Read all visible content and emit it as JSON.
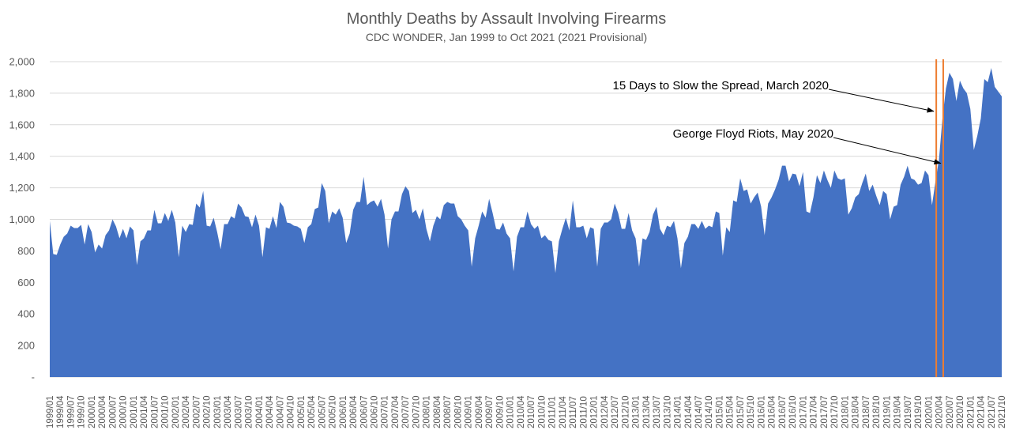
{
  "chart_data": {
    "type": "area",
    "title": "Monthly Deaths by Assault Involving Firearms",
    "subtitle": "CDC WONDER, Jan 1999 to Oct 2021 (2021 Provisional)",
    "ylim": [
      0,
      2000
    ],
    "yticks": [
      0,
      200,
      400,
      600,
      800,
      1000,
      1200,
      1400,
      1600,
      1800,
      2000
    ],
    "ytick_labels": [
      "-",
      "200",
      "400",
      "600",
      "800",
      "1,000",
      "1,200",
      "1,400",
      "1,600",
      "1,800",
      "2,000"
    ],
    "grid": true,
    "legend": "none",
    "x_start": "1999/01",
    "x_end": "2021/10",
    "x_label_step_months": 3,
    "colors": {
      "area": "#4472C4",
      "vline": "#ED7D31",
      "grid": "#D9D9D9",
      "text": "#595959"
    },
    "series": [
      {
        "values": [
          990,
          780,
          775,
          840,
          890,
          910,
          960,
          945,
          945,
          965,
          840,
          970,
          920,
          790,
          840,
          815,
          900,
          930,
          1000,
          955,
          880,
          940,
          880,
          955,
          930,
          710,
          860,
          880,
          930,
          930,
          1060,
          975,
          975,
          1040,
          990,
          1060,
          980,
          760,
          960,
          920,
          970,
          965,
          1100,
          1075,
          1180,
          960,
          955,
          1010,
          920,
          810,
          970,
          970,
          1020,
          1005,
          1100,
          1075,
          1020,
          1015,
          950,
          1030,
          960,
          760,
          950,
          940,
          1020,
          945,
          1110,
          1080,
          980,
          975,
          960,
          955,
          940,
          850,
          950,
          970,
          1065,
          1075,
          1230,
          1180,
          975,
          1050,
          1030,
          1070,
          1010,
          850,
          910,
          1060,
          1110,
          1110,
          1270,
          1090,
          1110,
          1120,
          1080,
          1130,
          1030,
          815,
          1000,
          1050,
          1050,
          1160,
          1210,
          1180,
          1040,
          1060,
          1000,
          1070,
          940,
          860,
          960,
          1020,
          1000,
          1090,
          1110,
          1100,
          1100,
          1020,
          1000,
          960,
          930,
          700,
          880,
          960,
          1050,
          1010,
          1130,
          1040,
          940,
          935,
          980,
          910,
          880,
          670,
          890,
          950,
          950,
          1050,
          970,
          940,
          960,
          880,
          900,
          870,
          860,
          660,
          860,
          940,
          1010,
          930,
          1120,
          950,
          950,
          960,
          880,
          950,
          940,
          700,
          940,
          980,
          980,
          1000,
          1100,
          1040,
          940,
          940,
          1040,
          930,
          880,
          700,
          880,
          870,
          920,
          1030,
          1080,
          940,
          900,
          960,
          950,
          990,
          880,
          690,
          850,
          890,
          970,
          970,
          940,
          990,
          940,
          960,
          950,
          1050,
          1040,
          770,
          950,
          920,
          1120,
          1110,
          1260,
          1180,
          1190,
          1100,
          1140,
          1170,
          1080,
          900,
          1100,
          1140,
          1190,
          1250,
          1340,
          1340,
          1240,
          1290,
          1285,
          1210,
          1300,
          1050,
          1040,
          1140,
          1280,
          1230,
          1310,
          1250,
          1200,
          1310,
          1260,
          1250,
          1260,
          1030,
          1070,
          1140,
          1160,
          1230,
          1290,
          1180,
          1220,
          1150,
          1090,
          1180,
          1160,
          1000,
          1080,
          1090,
          1220,
          1270,
          1340,
          1260,
          1250,
          1220,
          1230,
          1310,
          1280,
          1090,
          1240,
          1380,
          1640,
          1830,
          1930,
          1890,
          1750,
          1880,
          1830,
          1800,
          1700,
          1440,
          1530,
          1640,
          1890,
          1870,
          1960,
          1840,
          1810,
          1780
        ]
      }
    ],
    "annotations": [
      {
        "text": "15 Days to Slow the Spread, March 2020",
        "x": "2020/03",
        "y": 1660
      },
      {
        "text": "George Floyd Riots, May 2020",
        "x": "2020/05",
        "y": 1330
      }
    ],
    "vlines": [
      "2020/03",
      "2020/05"
    ]
  }
}
